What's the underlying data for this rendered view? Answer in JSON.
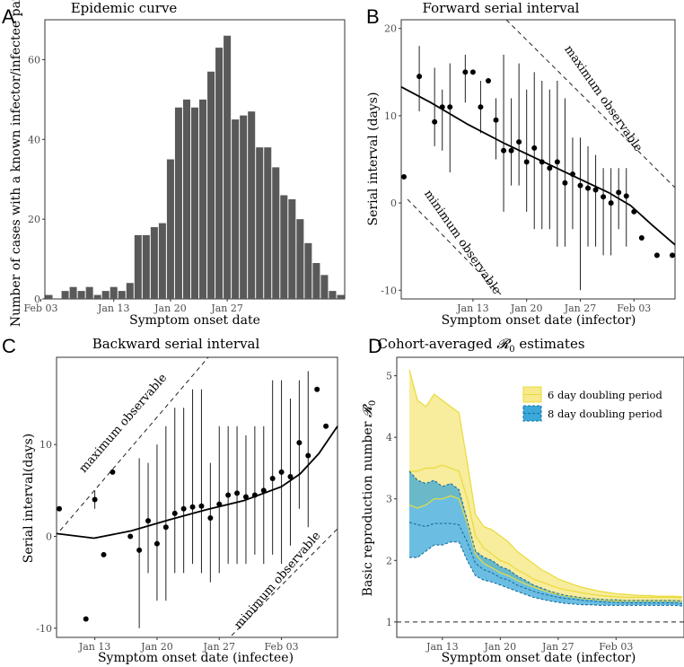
{
  "colors": {
    "bar": "#595959",
    "yellow_fill": "#f7e98c",
    "yellow_line": "#e8dc3c",
    "blue_fill": "#3aa8d8",
    "blue_line": "#1a6fa0",
    "teal_overlap": "#3d9c8c"
  },
  "chart_data": [
    {
      "panel": "A",
      "type": "bar",
      "title": "Epidemic curve",
      "xlabel": "Symptom onset date",
      "ylabel": "Number of cases with a known infector/infectee pair",
      "x_ticks": [
        "Jan 13",
        "Jan 20",
        "Jan 27",
        "Feb 03"
      ],
      "y_ticks": [
        "0",
        "20",
        "40",
        "60"
      ],
      "ylim": [
        0,
        70
      ],
      "categories": [
        "Jan 5",
        "Jan 6",
        "Jan 7",
        "Jan 8",
        "Jan 9",
        "Jan 10",
        "Jan 11",
        "Jan 12",
        "Jan 13",
        "Jan 14",
        "Jan 15",
        "Jan 16",
        "Jan 17",
        "Jan 18",
        "Jan 19",
        "Jan 20",
        "Jan 21",
        "Jan 22",
        "Jan 23",
        "Jan 24",
        "Jan 25",
        "Jan 26",
        "Jan 27",
        "Jan 28",
        "Jan 29",
        "Jan 30",
        "Jan 31",
        "Feb 1",
        "Feb 2",
        "Feb 3",
        "Feb 4",
        "Feb 5",
        "Feb 6",
        "Feb 7",
        "Feb 8",
        "Feb 9",
        "Feb 10"
      ],
      "values": [
        1,
        0,
        2,
        3,
        2,
        3,
        1,
        2,
        3,
        2,
        4,
        16,
        16,
        18,
        19,
        35,
        48,
        50,
        48,
        50,
        57,
        63,
        66,
        45,
        46,
        47,
        38,
        38,
        33,
        26,
        25,
        20,
        14,
        9,
        6,
        2,
        1
      ]
    },
    {
      "panel": "B",
      "type": "scatter",
      "title": "Forward serial interval",
      "xlabel": "Symptom onset date (infector)",
      "ylabel": "Serial interval (days)",
      "x_ticks": [
        "Jan 13",
        "Jan 20",
        "Jan 27",
        "Feb 03"
      ],
      "y_ticks": [
        "-10",
        "0",
        "10",
        "20"
      ],
      "ylim": [
        -11,
        21
      ],
      "annotations": [
        "maximum observable",
        "minimum observable"
      ],
      "x": [
        "Jan 4",
        "Jan 6",
        "Jan 8",
        "Jan 9",
        "Jan 10",
        "Jan 12",
        "Jan 13",
        "Jan 14",
        "Jan 15",
        "Jan 16",
        "Jan 17",
        "Jan 18",
        "Jan 19",
        "Jan 20",
        "Jan 21",
        "Jan 22",
        "Jan 23",
        "Jan 24",
        "Jan 25",
        "Jan 26",
        "Jan 27",
        "Jan 28",
        "Jan 29",
        "Jan 30",
        "Jan 31",
        "Feb 1",
        "Feb 2",
        "Feb 3",
        "Feb 4",
        "Feb 6",
        "Feb 8"
      ],
      "y": [
        3,
        14.5,
        9.3,
        11,
        11,
        15,
        15,
        11,
        14,
        9.5,
        6,
        6,
        7,
        4.7,
        6.3,
        4.7,
        4,
        4.7,
        2.3,
        3.3,
        2,
        1.7,
        1.5,
        0.7,
        0,
        1.2,
        0.8,
        -1,
        -4,
        -6,
        -6
      ],
      "err_low": [
        null,
        10.5,
        6.5,
        6,
        3.5,
        11.5,
        null,
        8,
        null,
        5,
        -1,
        2,
        2,
        -1,
        -3,
        -3,
        -3,
        -5,
        -5,
        -3,
        -10,
        -5,
        -5,
        -6,
        -6,
        -3,
        -5,
        -5,
        null,
        null,
        null
      ],
      "err_high": [
        null,
        18,
        15.5,
        13,
        16,
        17,
        19.5,
        14,
        null,
        12,
        17,
        12,
        16,
        13,
        15,
        14,
        13,
        14,
        12,
        7.5,
        7.5,
        6.5,
        5.5,
        4,
        4,
        4,
        4,
        null,
        null,
        null,
        null
      ],
      "trend": [
        [
          0,
          13.3
        ],
        [
          4,
          11.5
        ],
        [
          9,
          9
        ],
        [
          14,
          6.8
        ],
        [
          19,
          4.8
        ],
        [
          24,
          2.8
        ],
        [
          28,
          1.2
        ],
        [
          31,
          -0.3
        ],
        [
          34,
          -2.6
        ],
        [
          37,
          -4.8
        ]
      ]
    },
    {
      "panel": "C",
      "type": "scatter",
      "title": "Backward serial interval",
      "xlabel": "Symptom onset date (infectee)",
      "ylabel": "Serial interval(days)",
      "x_ticks": [
        "Jan 13",
        "Jan 20",
        "Jan 27",
        "Feb 03"
      ],
      "y_ticks": [
        "-10",
        "0",
        "10"
      ],
      "ylim": [
        -11,
        19.5
      ],
      "annotations": [
        "maximum observable",
        "minimum observable"
      ],
      "x": [
        "Jan 9",
        "Jan 12",
        "Jan 13",
        "Jan 14",
        "Jan 15",
        "Jan 17",
        "Jan 18",
        "Jan 19",
        "Jan 20",
        "Jan 21",
        "Jan 22",
        "Jan 23",
        "Jan 24",
        "Jan 25",
        "Jan 26",
        "Jan 27",
        "Jan 28",
        "Jan 29",
        "Jan 30",
        "Jan 31",
        "Feb 1",
        "Feb 2",
        "Feb 3",
        "Feb 4",
        "Feb 5",
        "Feb 6",
        "Feb 7",
        "Feb 8",
        "Feb 9"
      ],
      "y": [
        3,
        -9,
        4,
        -2,
        7,
        0,
        -1.5,
        1.7,
        -0.8,
        1,
        2.5,
        3,
        3.2,
        3.3,
        2,
        3.5,
        4.5,
        4.7,
        4.3,
        4.5,
        5,
        6.3,
        7,
        6.5,
        10.2,
        8.8,
        16,
        12,
        null
      ],
      "err_low": [
        null,
        null,
        3,
        null,
        null,
        null,
        -10,
        -4,
        -7,
        -7,
        -4,
        -4,
        -3,
        -4,
        -5,
        -4,
        -3,
        -3,
        -3,
        -2,
        -3,
        -2,
        -3,
        -1,
        3,
        1,
        null,
        null,
        null
      ],
      "err_high": [
        null,
        null,
        5,
        null,
        null,
        null,
        8.5,
        8,
        10,
        12,
        14,
        14,
        16,
        16,
        8,
        12,
        12,
        12,
        11,
        12,
        12,
        17,
        17,
        15,
        17,
        18,
        null,
        null,
        null
      ],
      "trend": [
        [
          0,
          0.3
        ],
        [
          4,
          -0.2
        ],
        [
          8,
          0.6
        ],
        [
          12,
          1.8
        ],
        [
          16,
          2.9
        ],
        [
          20,
          3.9
        ],
        [
          24,
          5.4
        ],
        [
          26,
          6.8
        ],
        [
          28,
          9
        ],
        [
          30,
          12
        ]
      ]
    },
    {
      "panel": "D",
      "type": "area",
      "title": "Cohort-averaged R0 estimates",
      "xlabel": "Symptom onset date (infector)",
      "ylabel": "Basic reproduction number R0",
      "x_ticks": [
        "Jan 13",
        "Jan 20",
        "Jan 27",
        "Feb 03"
      ],
      "y_ticks": [
        "1",
        "2",
        "3",
        "4",
        "5"
      ],
      "ylim": [
        0.75,
        5.3
      ],
      "legend": [
        "6 day doubling period",
        "8 day doubling period"
      ],
      "legend_position": "top-right",
      "reference_line": 1,
      "series": [
        {
          "name": "6 day doubling period",
          "x": [
            0,
            1,
            2,
            3,
            4,
            5,
            6,
            7,
            8,
            9,
            10,
            11,
            12,
            13,
            14,
            15,
            16,
            17,
            18,
            19,
            20,
            21,
            22,
            23,
            24,
            25,
            26,
            27,
            28,
            29,
            30,
            31,
            32,
            33
          ],
          "mid": [
            3.45,
            3.45,
            3.5,
            3.5,
            3.55,
            3.5,
            3.45,
            3.0,
            2.4,
            2.2,
            2.1,
            2.0,
            1.95,
            1.85,
            1.78,
            1.7,
            1.65,
            1.6,
            1.55,
            1.52,
            1.5,
            1.47,
            1.45,
            1.43,
            1.42,
            1.41,
            1.4,
            1.4,
            1.4,
            1.4,
            1.4,
            1.4,
            1.4,
            1.39
          ],
          "upper": [
            5.1,
            4.6,
            4.5,
            4.7,
            4.6,
            4.5,
            4.4,
            3.6,
            2.75,
            2.55,
            2.5,
            2.4,
            2.3,
            2.15,
            2.05,
            1.95,
            1.85,
            1.78,
            1.7,
            1.65,
            1.6,
            1.56,
            1.53,
            1.5,
            1.48,
            1.46,
            1.45,
            1.44,
            1.43,
            1.43,
            1.42,
            1.42,
            1.42,
            1.41
          ],
          "lower": [
            2.9,
            2.85,
            2.9,
            3.0,
            3.0,
            3.05,
            3.0,
            2.6,
            2.1,
            1.95,
            1.88,
            1.8,
            1.75,
            1.68,
            1.62,
            1.57,
            1.52,
            1.48,
            1.45,
            1.42,
            1.4,
            1.38,
            1.37,
            1.36,
            1.35,
            1.34,
            1.34,
            1.34,
            1.34,
            1.34,
            1.34,
            1.34,
            1.34,
            1.33
          ]
        },
        {
          "name": "8 day doubling period",
          "x": [
            0,
            1,
            2,
            3,
            4,
            5,
            6,
            7,
            8,
            9,
            10,
            11,
            12,
            13,
            14,
            15,
            16,
            17,
            18,
            19,
            20,
            21,
            22,
            23,
            24,
            25,
            26,
            27,
            28,
            29,
            30,
            31,
            32,
            33
          ],
          "mid": [
            2.62,
            2.58,
            2.55,
            2.6,
            2.6,
            2.6,
            2.58,
            2.3,
            1.95,
            1.85,
            1.8,
            1.72,
            1.68,
            1.6,
            1.55,
            1.5,
            1.46,
            1.43,
            1.4,
            1.38,
            1.37,
            1.35,
            1.34,
            1.33,
            1.32,
            1.32,
            1.31,
            1.31,
            1.31,
            1.31,
            1.31,
            1.31,
            1.31,
            1.3
          ],
          "upper": [
            3.45,
            3.3,
            3.25,
            3.3,
            3.2,
            3.25,
            3.15,
            2.65,
            2.15,
            2.05,
            2.0,
            1.9,
            1.85,
            1.75,
            1.68,
            1.6,
            1.55,
            1.5,
            1.46,
            1.43,
            1.41,
            1.39,
            1.38,
            1.37,
            1.36,
            1.36,
            1.35,
            1.35,
            1.35,
            1.35,
            1.35,
            1.35,
            1.35,
            1.34
          ],
          "lower": [
            2.05,
            2.05,
            2.15,
            2.25,
            2.25,
            2.3,
            2.3,
            2.0,
            1.75,
            1.68,
            1.65,
            1.6,
            1.55,
            1.5,
            1.45,
            1.4,
            1.37,
            1.34,
            1.32,
            1.3,
            1.29,
            1.28,
            1.28,
            1.27,
            1.27,
            1.27,
            1.27,
            1.27,
            1.27,
            1.27,
            1.27,
            1.27,
            1.27,
            1.26
          ]
        }
      ]
    }
  ]
}
